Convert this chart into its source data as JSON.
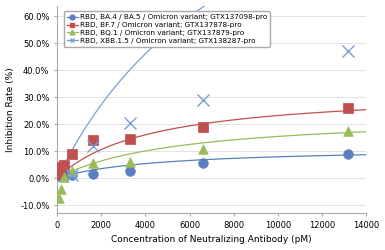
{
  "title": "",
  "xlabel": "Concentration of Neutralizing Antibody (pM)",
  "ylabel": "Inhibition Rate (%)",
  "xlim": [
    0,
    14000
  ],
  "ylim": [
    -0.13,
    0.64
  ],
  "xticks": [
    0,
    2000,
    4000,
    6000,
    8000,
    10000,
    12000,
    14000
  ],
  "ytick_vals": [
    -0.1,
    0.0,
    0.1,
    0.2,
    0.3,
    0.4,
    0.5,
    0.6
  ],
  "ytick_labels": [
    "-10.0%",
    "0.0%",
    "10.0%",
    "20.0%",
    "30.0%",
    "40.0%",
    "50.0%",
    "60.0%"
  ],
  "series": [
    {
      "label": "RBD, BA.4 / BA.5 / Omicron variant; GTX137098-pro",
      "color": "#5B7FBE",
      "marker": "o",
      "marker_size": 4,
      "scatter_x": [
        82,
        165,
        329,
        659,
        1646,
        3293,
        6585,
        13170
      ],
      "scatter_y": [
        0.008,
        0.02,
        0.015,
        0.01,
        0.015,
        0.028,
        0.055,
        0.09
      ],
      "curve_Bmax": 0.115,
      "curve_KD": 4500
    },
    {
      "label": "RBD, BF.7 / Omicron variant; GTX137878-pro",
      "color": "#C0504D",
      "marker": "s",
      "marker_size": 4,
      "scatter_x": [
        82,
        165,
        329,
        659,
        1646,
        3293,
        6585,
        13170
      ],
      "scatter_y": [
        0.015,
        0.04,
        0.05,
        0.09,
        0.14,
        0.145,
        0.19,
        0.26
      ],
      "curve_Bmax": 0.33,
      "curve_KD": 4200
    },
    {
      "label": "RBD, BQ.1 / Omicron variant; GTX137879-pro",
      "color": "#9BBB59",
      "marker": "^",
      "marker_size": 4,
      "scatter_x": [
        82,
        165,
        329,
        659,
        1646,
        3293,
        6585,
        13170
      ],
      "scatter_y": [
        -0.075,
        -0.04,
        0.005,
        0.025,
        0.055,
        0.06,
        0.11,
        0.175
      ],
      "curve_Bmax": 0.24,
      "curve_KD": 5500
    },
    {
      "label": "RBD, XBB.1.5 / Omicron variant; GTX138287-pro",
      "color": "#7B9FD4",
      "marker": "x",
      "marker_size": 5,
      "scatter_x": [
        659,
        1646,
        3293,
        6585,
        13170
      ],
      "scatter_y": [
        0.012,
        0.12,
        0.205,
        0.29,
        0.47
      ],
      "curve_Bmax": 1.5,
      "curve_KD": 9000
    }
  ],
  "legend_fontsize": 5.2,
  "axis_fontsize": 6.5,
  "tick_fontsize": 6,
  "background_color": "#ffffff",
  "grid_color": "#d8d8d8"
}
